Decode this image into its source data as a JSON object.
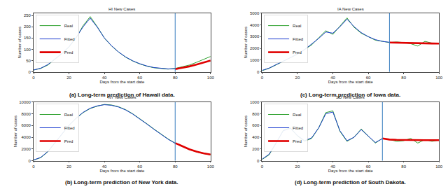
{
  "chart_data": [
    {
      "type": "line",
      "title": "HI New Cases",
      "subtitle": "(a) Long-term prediction of Hawaii data.",
      "x_label": "Days from the start date",
      "y_label": "Number of cases",
      "x": [
        0,
        4,
        8,
        12,
        16,
        20,
        24,
        28,
        32,
        36,
        40,
        44,
        48,
        52,
        56,
        60,
        64,
        68,
        72,
        76,
        80,
        84,
        88,
        92,
        96,
        100
      ],
      "series": [
        {
          "name": "Real",
          "color": "#2ca02c",
          "values": [
            8,
            15,
            30,
            55,
            80,
            110,
            150,
            205,
            245,
            200,
            150,
            115,
            88,
            65,
            48,
            35,
            25,
            18,
            14,
            12,
            15,
            22,
            30,
            42,
            55,
            68
          ]
        },
        {
          "name": "Fitted",
          "color": "#1f3fd0",
          "values": [
            8,
            16,
            32,
            56,
            82,
            112,
            152,
            200,
            238,
            198,
            150,
            116,
            88,
            66,
            49,
            36,
            26,
            19,
            15,
            13,
            14,
            null,
            null,
            null,
            null,
            null
          ]
        },
        {
          "name": "Pred",
          "color": "#e00000",
          "values": [
            null,
            null,
            null,
            null,
            null,
            null,
            null,
            null,
            null,
            null,
            null,
            null,
            null,
            null,
            null,
            null,
            null,
            null,
            null,
            null,
            12,
            17,
            24,
            32,
            40,
            50
          ]
        }
      ],
      "cutoff": 80,
      "xlim": [
        0,
        100
      ],
      "ylim": [
        0,
        260
      ],
      "xticks": [
        0,
        20,
        40,
        60,
        80,
        100
      ],
      "yticks": [
        0,
        50,
        100,
        150,
        200,
        250
      ],
      "legend": "upper left"
    },
    {
      "type": "line",
      "title": "NY New Cases",
      "subtitle": "(b) Long-term prediction of New York data.",
      "x_label": "Days from the start date",
      "y_label": "Number of cases",
      "x": [
        0,
        4,
        8,
        12,
        16,
        20,
        24,
        28,
        32,
        36,
        40,
        44,
        48,
        52,
        56,
        60,
        64,
        68,
        72,
        76,
        80,
        84,
        88,
        92,
        96,
        100
      ],
      "series": [
        {
          "name": "Real",
          "color": "#2ca02c",
          "values": [
            100,
            500,
            1500,
            3000,
            4500,
            6000,
            7200,
            8200,
            8900,
            9300,
            9600,
            9500,
            9200,
            8700,
            8000,
            7200,
            6300,
            5400,
            4500,
            3700,
            3000,
            2400,
            1900,
            1500,
            1200,
            1000
          ]
        },
        {
          "name": "Fitted",
          "color": "#1f3fd0",
          "values": [
            120,
            550,
            1550,
            3050,
            4550,
            6050,
            7250,
            8250,
            8950,
            9350,
            9550,
            9450,
            9150,
            8650,
            7950,
            7150,
            6250,
            5350,
            4450,
            3650,
            2950,
            null,
            null,
            null,
            null,
            null
          ]
        },
        {
          "name": "Pred",
          "color": "#e00000",
          "values": [
            null,
            null,
            null,
            null,
            null,
            null,
            null,
            null,
            null,
            null,
            null,
            null,
            null,
            null,
            null,
            null,
            null,
            null,
            null,
            null,
            3000,
            2450,
            1950,
            1550,
            1250,
            1050
          ]
        }
      ],
      "cutoff": 80,
      "xlim": [
        0,
        100
      ],
      "ylim": [
        0,
        10000
      ],
      "xticks": [
        0,
        20,
        40,
        60,
        80,
        100
      ],
      "yticks": [
        0,
        2000,
        4000,
        6000,
        8000,
        10000
      ],
      "legend": "upper left"
    },
    {
      "type": "line",
      "title": "IA New Cases",
      "subtitle": "(c) Long-term prediction of Iowa data.",
      "x_label": "Days from the start date",
      "y_label": "Number of cases",
      "x": [
        0,
        4,
        8,
        12,
        16,
        20,
        24,
        28,
        32,
        36,
        40,
        44,
        48,
        52,
        56,
        60,
        64,
        68,
        72,
        76,
        80,
        84,
        88,
        92,
        96,
        100
      ],
      "series": [
        {
          "name": "Real",
          "color": "#2ca02c",
          "values": [
            100,
            300,
            600,
            900,
            1200,
            1500,
            1900,
            2300,
            2900,
            3500,
            3200,
            3900,
            4600,
            3800,
            3300,
            3000,
            2700,
            2600,
            2500,
            2550,
            2500,
            2400,
            2200,
            2600,
            2450,
            2400
          ]
        },
        {
          "name": "Fitted",
          "color": "#1f3fd0",
          "values": [
            120,
            320,
            620,
            920,
            1220,
            1520,
            1900,
            2350,
            2850,
            3400,
            3300,
            3850,
            4500,
            3850,
            3350,
            3000,
            2750,
            2600,
            2520,
            null,
            null,
            null,
            null,
            null,
            null,
            null
          ]
        },
        {
          "name": "Pred",
          "color": "#e00000",
          "values": [
            null,
            null,
            null,
            null,
            null,
            null,
            null,
            null,
            null,
            null,
            null,
            null,
            null,
            null,
            null,
            null,
            null,
            null,
            2500,
            2480,
            2460,
            2450,
            2440,
            2430,
            2420,
            2410
          ]
        }
      ],
      "cutoff": 72,
      "xlim": [
        0,
        100
      ],
      "ylim": [
        0,
        5000
      ],
      "xticks": [
        0,
        20,
        40,
        60,
        80,
        100
      ],
      "yticks": [
        0,
        1000,
        2000,
        3000,
        4000,
        5000
      ],
      "legend": "upper left"
    },
    {
      "type": "line",
      "title": "SD New Cases",
      "subtitle": "(d) Long-term prediction of South Dakota.",
      "x_label": "Days from the start date",
      "y_label": "Number of cases",
      "x": [
        0,
        4,
        8,
        12,
        16,
        20,
        24,
        28,
        32,
        36,
        40,
        44,
        48,
        52,
        56,
        60,
        64,
        68,
        72,
        76,
        80,
        84,
        88,
        92,
        96,
        100
      ],
      "series": [
        {
          "name": "Real",
          "color": "#2ca02c",
          "values": [
            20,
            100,
            300,
            520,
            560,
            420,
            330,
            380,
            560,
            820,
            850,
            500,
            330,
            400,
            540,
            420,
            300,
            380,
            360,
            330,
            340,
            380,
            300,
            360,
            330,
            350
          ]
        },
        {
          "name": "Fitted",
          "color": "#1f3fd0",
          "values": [
            25,
            110,
            310,
            510,
            550,
            430,
            340,
            390,
            560,
            800,
            830,
            510,
            340,
            400,
            530,
            420,
            310,
            375,
            null,
            null,
            null,
            null,
            null,
            null,
            null,
            null
          ]
        },
        {
          "name": "Pred",
          "color": "#e00000",
          "values": [
            null,
            null,
            null,
            null,
            null,
            null,
            null,
            null,
            null,
            null,
            null,
            null,
            null,
            null,
            null,
            null,
            null,
            380,
            360,
            355,
            352,
            350,
            350,
            350,
            350,
            350
          ]
        }
      ],
      "cutoff": 68,
      "xlim": [
        0,
        100
      ],
      "ylim": [
        0,
        1000
      ],
      "xticks": [
        0,
        20,
        40,
        60,
        80,
        100
      ],
      "yticks": [
        0,
        200,
        400,
        600,
        800,
        1000
      ],
      "legend": "upper left"
    }
  ]
}
